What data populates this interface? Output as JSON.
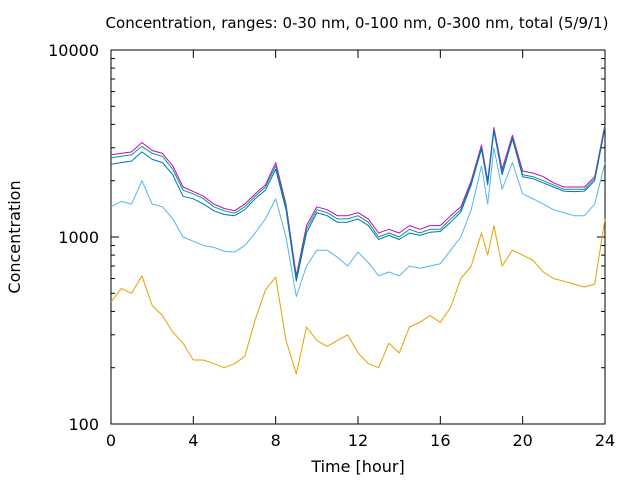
{
  "chart_data": {
    "type": "line",
    "title": "Concentration, ranges: 0-30 nm, 0-100 nm, 0-300 nm, total (5/9/1)",
    "xlabel": "Time [hour]",
    "ylabel": "Concentration",
    "xlim": [
      0,
      24
    ],
    "ylim": [
      100,
      10000
    ],
    "yscale": "log",
    "grid": false,
    "legend": "none",
    "x_ticks": [
      "0",
      "4",
      "8",
      "12",
      "16",
      "20",
      "24"
    ],
    "y_ticks": [
      "100",
      "1000",
      "10000"
    ],
    "x": [
      0,
      0.5,
      1,
      1.5,
      2,
      2.5,
      3,
      3.5,
      4,
      4.5,
      5,
      5.5,
      6,
      6.5,
      7,
      7.5,
      8,
      8.5,
      9,
      9.5,
      10,
      10.5,
      11,
      11.5,
      12,
      12.5,
      13,
      13.5,
      14,
      14.5,
      15,
      15.5,
      16,
      16.5,
      17,
      17.5,
      18,
      18.3,
      18.6,
      19,
      19.5,
      20,
      20.5,
      21,
      21.5,
      22,
      22.5,
      23,
      23.5,
      24
    ],
    "series": [
      {
        "color": "#cc00cc",
        "values": [
          2750,
          2800,
          2850,
          3200,
          2900,
          2800,
          2400,
          1850,
          1750,
          1650,
          1500,
          1420,
          1380,
          1500,
          1700,
          1900,
          2500,
          1500,
          620,
          1150,
          1450,
          1400,
          1300,
          1300,
          1350,
          1250,
          1050,
          1100,
          1050,
          1150,
          1100,
          1150,
          1150,
          1300,
          1450,
          2000,
          3100,
          2000,
          3850,
          2300,
          3500,
          2250,
          2200,
          2100,
          1950,
          1850,
          1850,
          1850,
          2100,
          4000
        ]
      },
      {
        "color": "#009e73",
        "values": [
          2650,
          2700,
          2750,
          3050,
          2800,
          2700,
          2300,
          1780,
          1700,
          1600,
          1450,
          1380,
          1340,
          1450,
          1650,
          1850,
          2400,
          1450,
          600,
          1100,
          1400,
          1350,
          1250,
          1250,
          1300,
          1200,
          1000,
          1050,
          1000,
          1100,
          1050,
          1100,
          1100,
          1250,
          1400,
          1950,
          3000,
          1950,
          3750,
          2200,
          3400,
          2150,
          2100,
          2000,
          1900,
          1800,
          1800,
          1800,
          2050,
          3900
        ]
      },
      {
        "color": "#0072b2",
        "values": [
          2450,
          2500,
          2550,
          2850,
          2600,
          2500,
          2150,
          1650,
          1600,
          1500,
          1380,
          1320,
          1300,
          1400,
          1600,
          1780,
          2300,
          1400,
          580,
          1050,
          1350,
          1300,
          1200,
          1200,
          1250,
          1150,
          970,
          1020,
          970,
          1050,
          1020,
          1060,
          1070,
          1200,
          1360,
          1900,
          2950,
          1900,
          3700,
          2150,
          3350,
          2100,
          2050,
          1950,
          1850,
          1760,
          1750,
          1760,
          2000,
          3850
        ]
      },
      {
        "color": "#56b4e9",
        "values": [
          1450,
          1550,
          1500,
          2000,
          1500,
          1450,
          1250,
          1000,
          950,
          900,
          880,
          840,
          830,
          900,
          1050,
          1250,
          1600,
          1000,
          480,
          700,
          850,
          850,
          780,
          700,
          830,
          730,
          620,
          650,
          620,
          700,
          680,
          700,
          720,
          850,
          1000,
          1400,
          2400,
          1500,
          3000,
          1800,
          2500,
          1700,
          1600,
          1500,
          1400,
          1350,
          1300,
          1300,
          1500,
          2500
        ]
      },
      {
        "color": "#e69f00",
        "values": [
          450,
          530,
          500,
          620,
          430,
          380,
          310,
          270,
          220,
          220,
          210,
          200,
          210,
          230,
          360,
          520,
          610,
          280,
          185,
          330,
          280,
          260,
          280,
          300,
          240,
          210,
          200,
          270,
          240,
          330,
          350,
          380,
          350,
          420,
          600,
          700,
          1050,
          800,
          1150,
          700,
          850,
          800,
          750,
          650,
          600,
          580,
          560,
          540,
          560,
          1250
        ]
      }
    ]
  }
}
